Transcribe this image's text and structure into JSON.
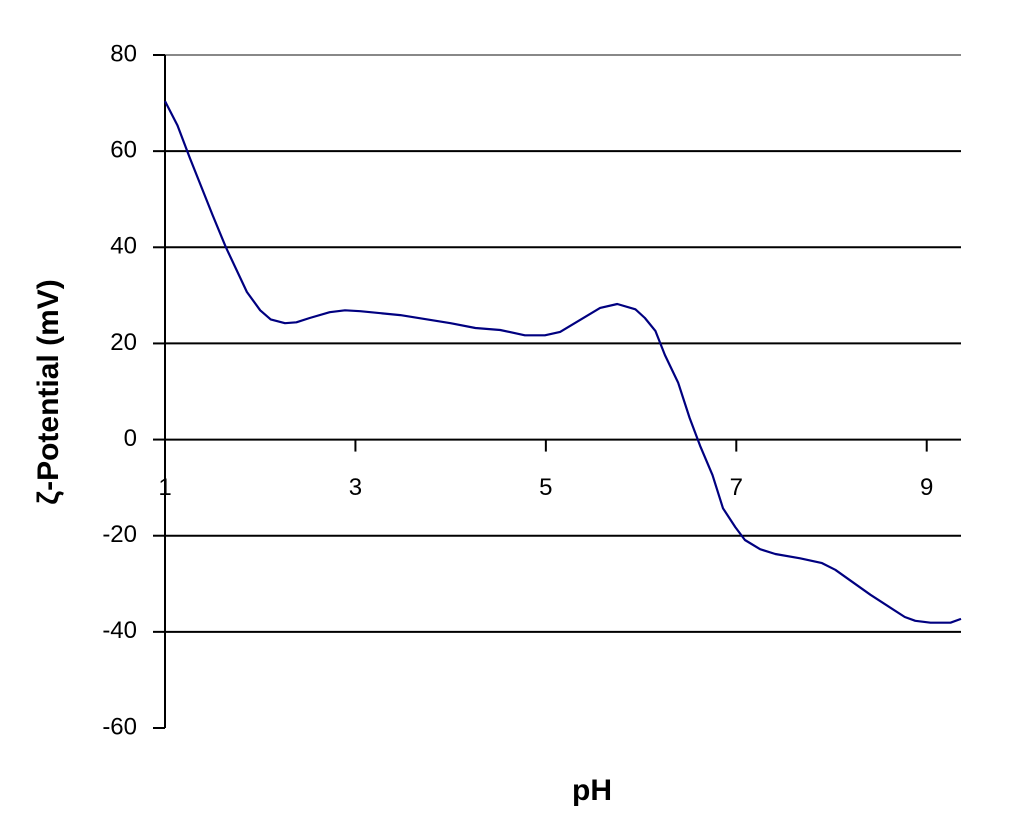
{
  "chart_data": {
    "type": "line",
    "x_label": "pH",
    "y_label": "ζ-Potential (mV)",
    "x": [
      1.0,
      1.13,
      1.26,
      1.5,
      1.64,
      1.86,
      2.0,
      2.11,
      2.26,
      2.38,
      2.52,
      2.73,
      2.89,
      3.05,
      3.47,
      4.0,
      4.26,
      4.52,
      4.78,
      4.99,
      5.15,
      5.36,
      5.57,
      5.75,
      5.94,
      6.04,
      6.15,
      6.25,
      6.39,
      6.51,
      6.62,
      6.75,
      6.86,
      6.99,
      7.09,
      7.25,
      7.41,
      7.67,
      7.9,
      8.04,
      8.41,
      8.77,
      8.88,
      9.04,
      9.25,
      9.36
    ],
    "series": [
      {
        "color": "#000080",
        "values": [
          70.4,
          65.4,
          58.6,
          46.7,
          40.0,
          30.7,
          26.9,
          25.0,
          24.2,
          24.4,
          25.3,
          26.5,
          26.9,
          26.7,
          25.9,
          24.2,
          23.2,
          22.8,
          21.7,
          21.7,
          22.4,
          24.9,
          27.4,
          28.2,
          27.1,
          25.3,
          22.6,
          17.6,
          11.8,
          4.5,
          -1.3,
          -7.4,
          -14.3,
          -18.2,
          -20.9,
          -22.8,
          -23.8,
          -24.7,
          -25.7,
          -27.1,
          -32.3,
          -36.9,
          -37.7,
          -38.1,
          -38.1,
          -37.3
        ]
      }
    ],
    "xlim": [
      1,
      9.36
    ],
    "xticks": [
      1,
      3,
      5,
      7,
      9
    ],
    "ylim": [
      -60,
      80
    ],
    "yticks": [
      -60,
      -40,
      -20,
      0,
      20,
      40,
      60,
      80
    ],
    "grid": true
  }
}
